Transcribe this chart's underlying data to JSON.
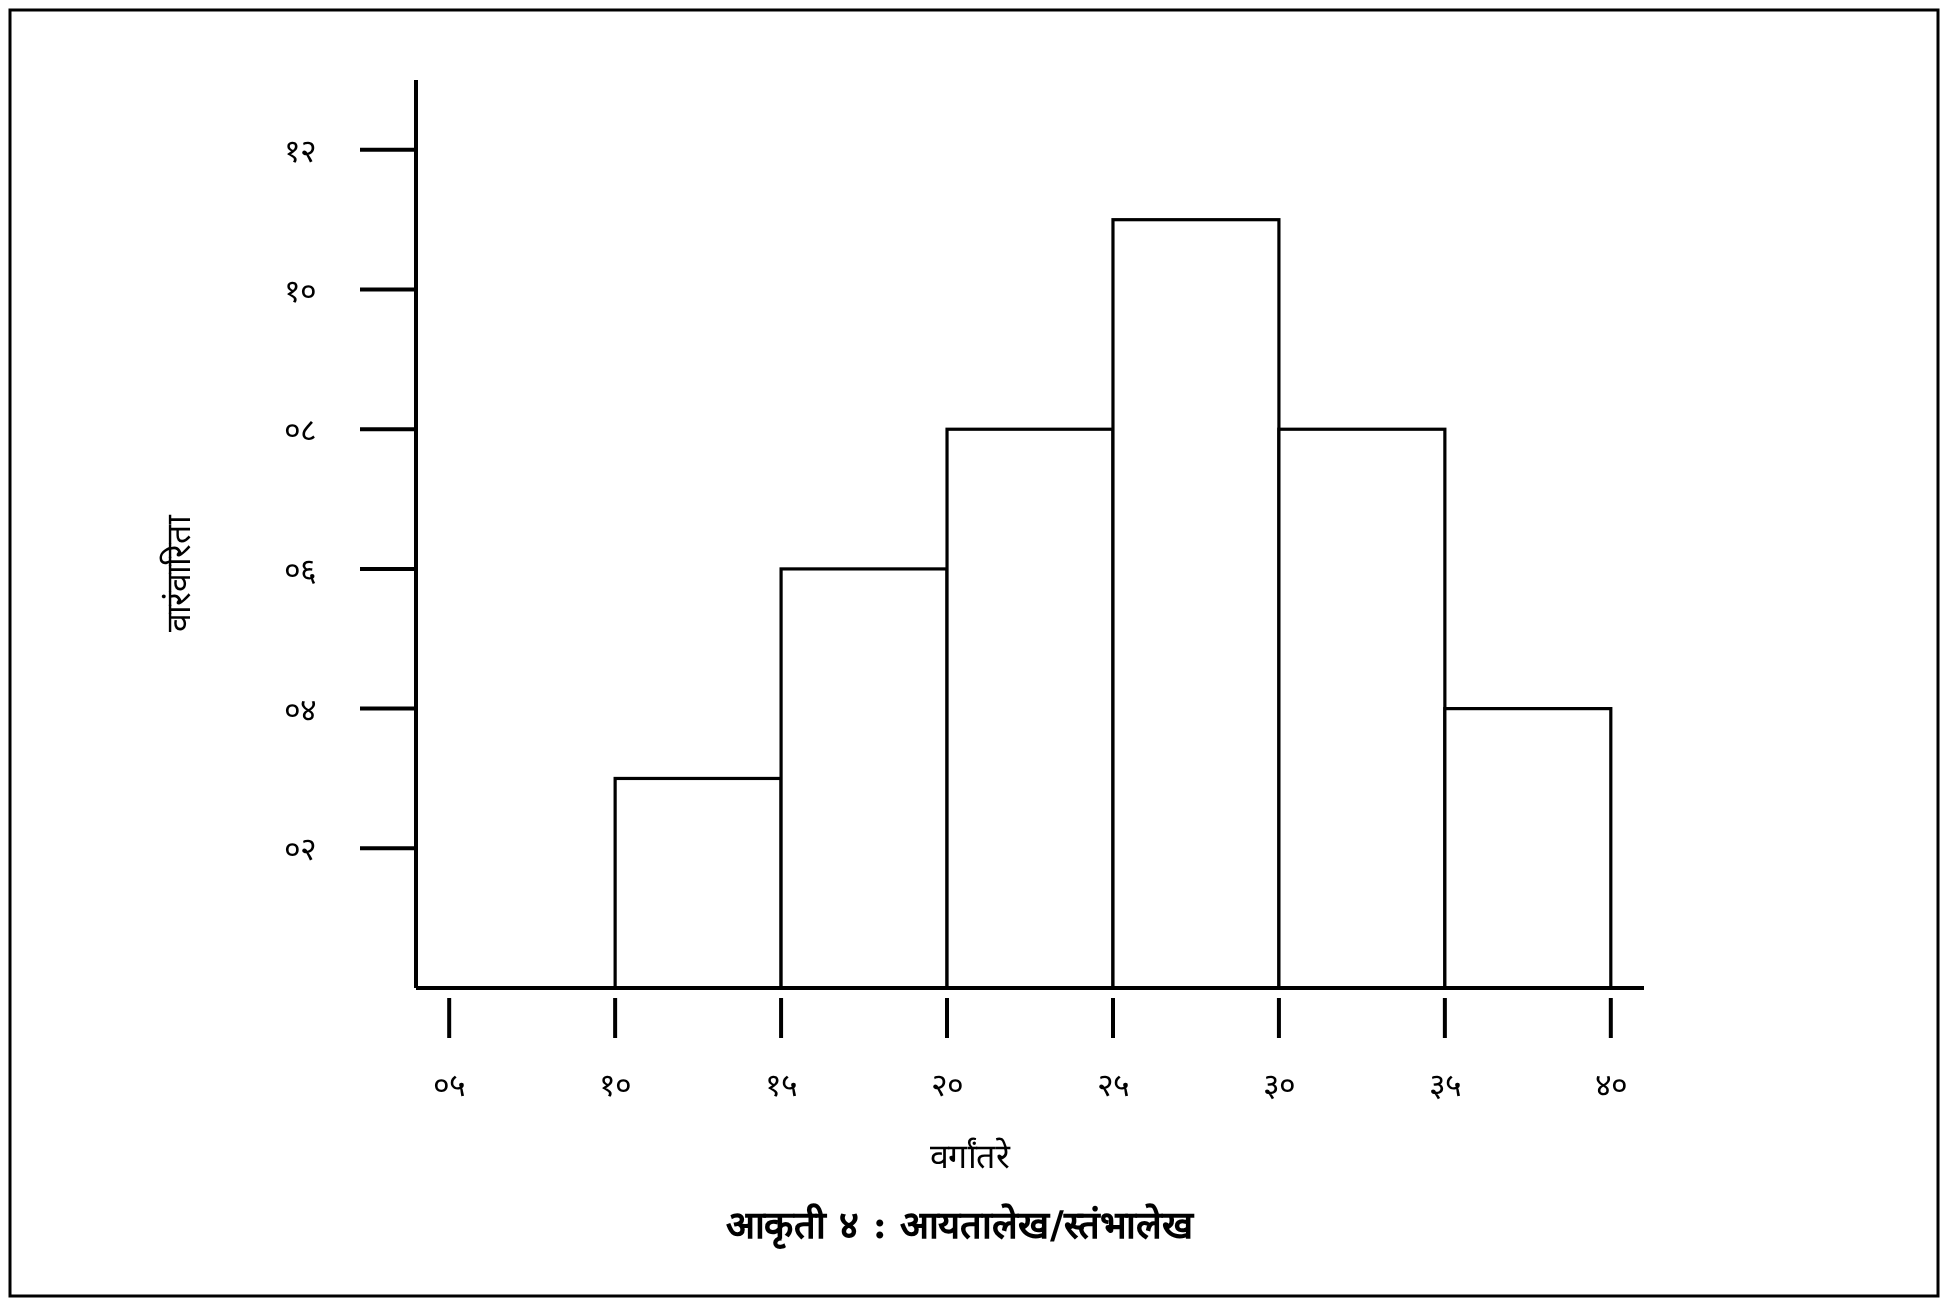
{
  "chart_data": {
    "type": "histogram",
    "title": "आकृती ४ : आयतालेख/स्तंभालेख",
    "xlabel": "वर्गांतरे",
    "ylabel": "वारंवारिता",
    "bins": [
      10,
      15,
      20,
      25,
      30,
      35,
      40
    ],
    "values": [
      3,
      6,
      8,
      11,
      8,
      4
    ],
    "color": "#ffffff",
    "xlim": [
      4,
      41
    ],
    "xticks": [
      {
        "value": 5,
        "label": "०५"
      },
      {
        "value": 10,
        "label": "१०"
      },
      {
        "value": 15,
        "label": "१५"
      },
      {
        "value": 20,
        "label": "२०"
      },
      {
        "value": 25,
        "label": "२५"
      },
      {
        "value": 30,
        "label": "३०"
      },
      {
        "value": 35,
        "label": "३५"
      },
      {
        "value": 40,
        "label": "४०"
      }
    ],
    "ylim": [
      0,
      13
    ],
    "yticks": [
      {
        "value": 2,
        "label": "०२"
      },
      {
        "value": 4,
        "label": "०४"
      },
      {
        "value": 6,
        "label": "०६"
      },
      {
        "value": 8,
        "label": "०८"
      },
      {
        "value": 10,
        "label": "१०"
      },
      {
        "value": 12,
        "label": "१२"
      }
    ],
    "grid": false
  }
}
